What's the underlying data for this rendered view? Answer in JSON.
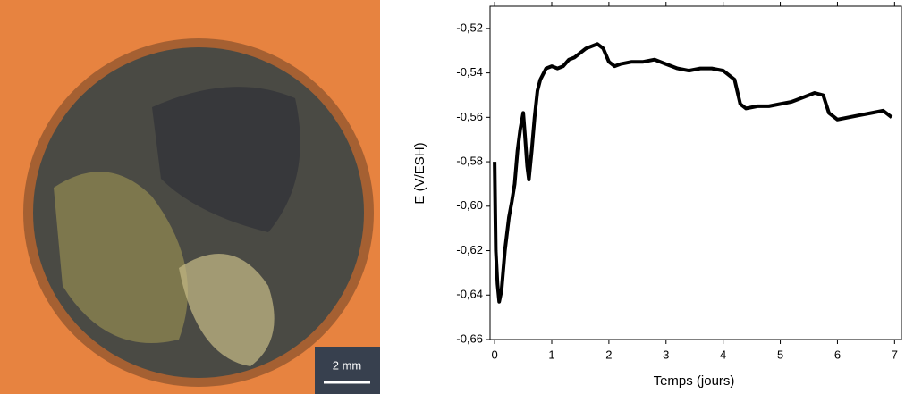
{
  "image": {
    "scale_bar": "2 mm"
  },
  "chart_data": {
    "type": "line",
    "xlabel": "Temps (jours)",
    "ylabel": "E (V/ESH)",
    "x": [
      0,
      0.02,
      0.05,
      0.08,
      0.12,
      0.18,
      0.25,
      0.3,
      0.35,
      0.4,
      0.45,
      0.5,
      0.53,
      0.57,
      0.6,
      0.65,
      0.7,
      0.75,
      0.8,
      0.9,
      1.0,
      1.1,
      1.2,
      1.3,
      1.4,
      1.5,
      1.6,
      1.7,
      1.8,
      1.9,
      2.0,
      2.1,
      2.2,
      2.4,
      2.6,
      2.8,
      3.0,
      3.2,
      3.4,
      3.6,
      3.8,
      4.0,
      4.2,
      4.3,
      4.4,
      4.6,
      4.8,
      5.0,
      5.2,
      5.4,
      5.6,
      5.75,
      5.85,
      6.0,
      6.2,
      6.4,
      6.6,
      6.8,
      6.95
    ],
    "values": [
      -0.58,
      -0.62,
      -0.635,
      -0.643,
      -0.638,
      -0.62,
      -0.605,
      -0.598,
      -0.59,
      -0.575,
      -0.565,
      -0.558,
      -0.568,
      -0.582,
      -0.588,
      -0.575,
      -0.56,
      -0.548,
      -0.543,
      -0.538,
      -0.537,
      -0.538,
      -0.537,
      -0.534,
      -0.533,
      -0.531,
      -0.529,
      -0.528,
      -0.527,
      -0.529,
      -0.535,
      -0.537,
      -0.536,
      -0.535,
      -0.535,
      -0.534,
      -0.536,
      -0.538,
      -0.539,
      -0.538,
      -0.538,
      -0.539,
      -0.543,
      -0.554,
      -0.556,
      -0.555,
      -0.555,
      -0.554,
      -0.553,
      -0.551,
      -0.549,
      -0.55,
      -0.558,
      -0.561,
      -0.56,
      -0.559,
      -0.558,
      -0.557,
      -0.56
    ],
    "color": "#000000",
    "xlim": [
      -0.08,
      7.12
    ],
    "ylim": [
      -0.66,
      -0.51
    ],
    "xticks": [
      0,
      1,
      2,
      3,
      4,
      5,
      6,
      7
    ],
    "yticks": [
      {
        "value": -0.66,
        "label": "-0,66"
      },
      {
        "value": -0.64,
        "label": "-0,64"
      },
      {
        "value": -0.62,
        "label": "-0,62"
      },
      {
        "value": -0.6,
        "label": "-0,60"
      },
      {
        "value": -0.58,
        "label": "-0,58"
      },
      {
        "value": -0.56,
        "label": "-0,56"
      },
      {
        "value": -0.54,
        "label": "-0,54"
      },
      {
        "value": -0.52,
        "label": "-0,52"
      }
    ]
  }
}
